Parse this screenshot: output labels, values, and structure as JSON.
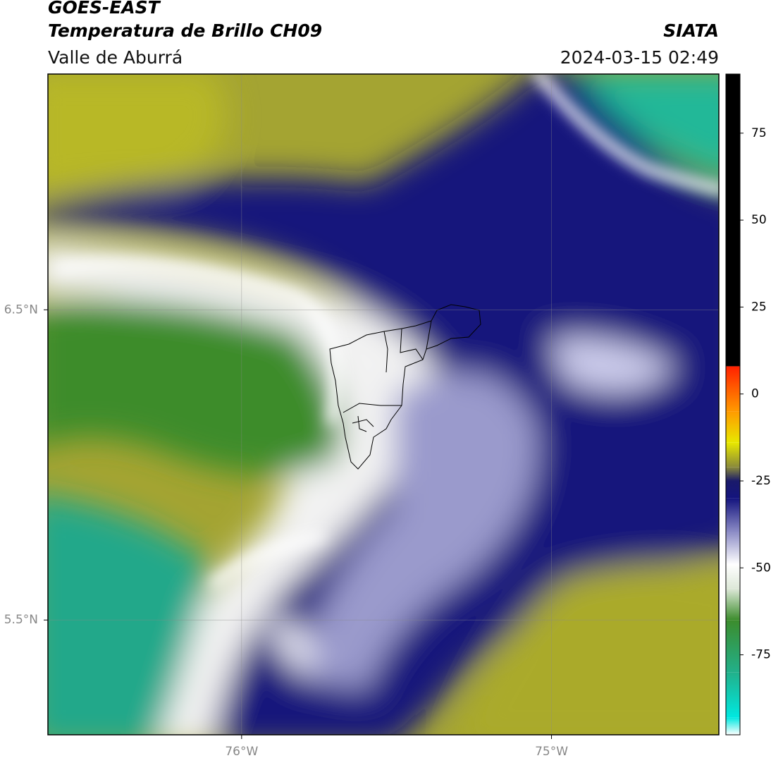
{
  "header": {
    "title": "GOES-EAST",
    "subtitle": "Temperatura de Brillo CH09",
    "region": "Valle de Aburrá",
    "source": "SIATA",
    "timestamp": "2024-03-15 02:49"
  },
  "map": {
    "xlim": [
      -76.625,
      -74.46
    ],
    "ylim": [
      5.13,
      7.26
    ],
    "xticks": [
      {
        "value": -76,
        "label": "76°W"
      },
      {
        "value": -75,
        "label": "75°W"
      }
    ],
    "yticks": [
      {
        "value": 6.5,
        "label": "6.5°N"
      },
      {
        "value": 5.5,
        "label": "5.5°N"
      }
    ],
    "grid": true
  },
  "colorbar": {
    "lim": [
      -98,
      92
    ],
    "ticks": [
      75,
      50,
      25,
      0,
      -25,
      -50,
      -75
    ],
    "stops": [
      {
        "value": -98,
        "color": "#ffffff"
      },
      {
        "value": -93,
        "color": "#00e8e0"
      },
      {
        "value": -80,
        "color": "#22b08a"
      },
      {
        "value": -65,
        "color": "#3c8c2c"
      },
      {
        "value": -56,
        "color": "#dde8d8"
      },
      {
        "value": -49,
        "color": "#ffffff"
      },
      {
        "value": -40,
        "color": "#9090c8"
      },
      {
        "value": -30,
        "color": "#14147e"
      },
      {
        "value": -25,
        "color": "#1a1a6a"
      },
      {
        "value": -21,
        "color": "#8a8a3a"
      },
      {
        "value": -14,
        "color": "#e8e800"
      },
      {
        "value": -5,
        "color": "#ff9a00"
      },
      {
        "value": 8,
        "color": "#ff2000"
      },
      {
        "value": 8.01,
        "color": "#000000"
      },
      {
        "value": 92,
        "color": "#000000"
      }
    ]
  }
}
